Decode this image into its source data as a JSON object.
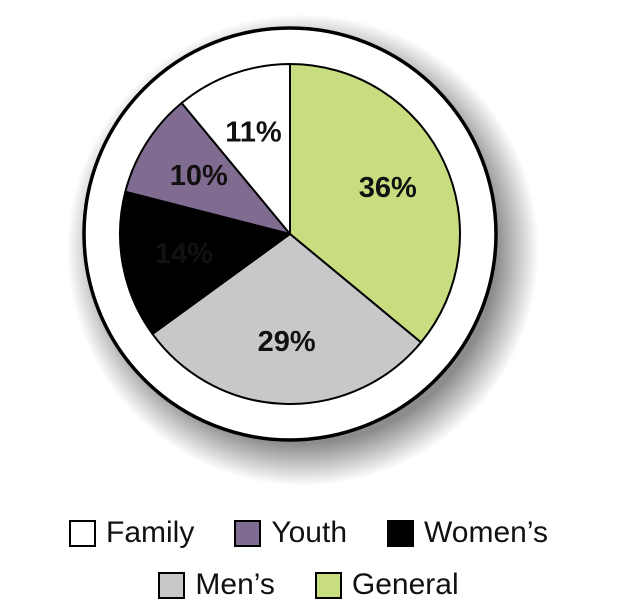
{
  "chart_data": {
    "type": "pie",
    "title": "",
    "slices": [
      {
        "name": "General",
        "value": 36,
        "label": "36%",
        "color": "#c8dd80"
      },
      {
        "name": "Men’s",
        "value": 29,
        "label": "29%",
        "color": "#c8c8ca"
      },
      {
        "name": "Women’s",
        "value": 14,
        "label": "14%",
        "color": "#000000"
      },
      {
        "name": "Youth",
        "value": 10,
        "label": "10%",
        "color": "#806c91"
      },
      {
        "name": "Family",
        "value": 11,
        "label": "11%",
        "color": "#ffffff"
      }
    ],
    "start": "12 o'clock",
    "direction": "clockwise",
    "legend_position": "bottom"
  },
  "legend": {
    "rows": [
      [
        {
          "label": "Family",
          "color": "#ffffff"
        },
        {
          "label": "Youth",
          "color": "#806c91"
        },
        {
          "label": "Women’s",
          "color": "#000000"
        }
      ],
      [
        {
          "label": "Men’s",
          "color": "#c8c8ca"
        },
        {
          "label": "General",
          "color": "#c8dd80"
        }
      ]
    ]
  }
}
